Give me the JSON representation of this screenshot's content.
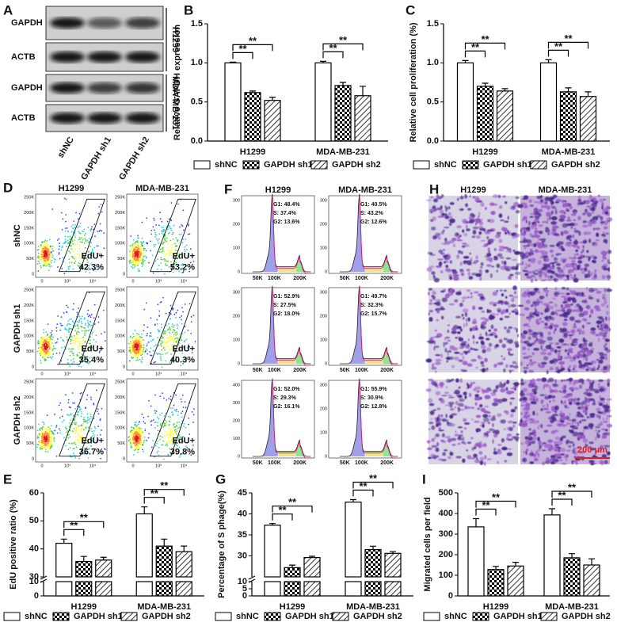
{
  "panel_letters": [
    "A",
    "B",
    "C",
    "D",
    "E",
    "F",
    "G",
    "H",
    "I"
  ],
  "blot": {
    "row_labels": [
      "GAPDH",
      "ACTB",
      "GAPDH",
      "ACTB"
    ],
    "cell_lines": [
      "H1299",
      "MDA-MB-231"
    ],
    "lanes": [
      "shNC",
      "GAPDH sh1",
      "GAPDH sh2"
    ]
  },
  "flow": {
    "columns": [
      "H1299",
      "MDA-MB-231"
    ],
    "rows": [
      "shNC",
      "GAPDH sh1",
      "GAPDH sh2"
    ],
    "gate_label": "EdU+",
    "percentages": [
      [
        "42.3%",
        "53.2%"
      ],
      [
        "35.4%",
        "40.3%"
      ],
      [
        "36.7%",
        "39.8%"
      ]
    ],
    "y_ticks": [
      "250K",
      "200K",
      "150K",
      "100K",
      "50K",
      "0"
    ],
    "x_ticks": [
      "0",
      "10³",
      "10⁴"
    ]
  },
  "cycle": {
    "columns": [
      "H1299",
      "MDA-MB-231"
    ],
    "phases": [
      [
        [
          "G1: 48.4%",
          "S: 37.4%",
          "G2: 13.6%"
        ],
        [
          "G1: 40.5%",
          "S: 43.2%",
          "G2: 12.6%"
        ]
      ],
      [
        [
          "G1: 52.9%",
          "S: 27.5%",
          "G2: 18.0%"
        ],
        [
          "G1: 49.7%",
          "S: 32.3%",
          "G2: 15.7%"
        ]
      ],
      [
        [
          "G1: 52.0%",
          "S: 29.3%",
          "G2: 16.1%"
        ],
        [
          "G1: 55.9%",
          "S: 30.9%",
          "G2: 12.8%"
        ]
      ]
    ],
    "y_ticks": [
      [
        [
          "300",
          "200",
          "100",
          "0"
        ],
        [
          "300",
          "200",
          "100",
          "0"
        ]
      ],
      [
        [
          "300",
          "200",
          "100",
          "0"
        ],
        [
          "300",
          "200",
          "100",
          "0"
        ]
      ],
      [
        [
          "400",
          "300",
          "200",
          "100",
          "0"
        ],
        [
          "300",
          "200",
          "100",
          "0"
        ]
      ]
    ],
    "x_ticks": [
      "50K",
      "100K",
      "200K"
    ]
  },
  "migration": {
    "columns": [
      "H1299",
      "MDA-MB-231"
    ],
    "scale_bar": "200 μm"
  },
  "chart_data": [
    {
      "type": "bar",
      "ylabel": "Relative GAPDH expression",
      "categories": [
        "H1299",
        "MDA-MB-231"
      ],
      "series": [
        {
          "name": "shNC",
          "color": "#ffffff",
          "pattern": "none",
          "values": [
            1.0,
            1.0
          ],
          "errors": [
            0.01,
            0.02
          ]
        },
        {
          "name": "GAPDH sh1",
          "color": "#ffffff",
          "pattern": "checker",
          "values": [
            0.62,
            0.71
          ],
          "errors": [
            0.02,
            0.04
          ]
        },
        {
          "name": "GAPDH sh2",
          "color": "#ffffff",
          "pattern": "hatch",
          "values": [
            0.52,
            0.58
          ],
          "errors": [
            0.04,
            0.12
          ]
        }
      ],
      "ylim": [
        0,
        1.5
      ],
      "yticks": [
        {
          "value": 0,
          "label": "0.0"
        },
        {
          "value": 0.5,
          "label": "0.5"
        },
        {
          "value": 1,
          "label": "1.0"
        },
        {
          "value": 1.5,
          "label": "1.5"
        }
      ],
      "annotations": [
        "**",
        "**",
        "**",
        "**"
      ]
    },
    {
      "type": "bar",
      "ylabel": "Relative cell proliferation (%)",
      "categories": [
        "H1299",
        "MDA-MB-231"
      ],
      "series": [
        {
          "name": "shNC",
          "color": "#ffffff",
          "pattern": "none",
          "values": [
            1.0,
            1.0
          ],
          "errors": [
            0.03,
            0.04
          ]
        },
        {
          "name": "GAPDH sh1",
          "color": "#ffffff",
          "pattern": "checker",
          "values": [
            0.7,
            0.63
          ],
          "errors": [
            0.04,
            0.05
          ]
        },
        {
          "name": "GAPDH sh2",
          "color": "#ffffff",
          "pattern": "hatch",
          "values": [
            0.64,
            0.57
          ],
          "errors": [
            0.03,
            0.06
          ]
        }
      ],
      "ylim": [
        0,
        1.5
      ],
      "yticks": [
        {
          "value": 0,
          "label": "0.0"
        },
        {
          "value": 0.5,
          "label": "0.5"
        },
        {
          "value": 1,
          "label": "1.0"
        },
        {
          "value": 1.5,
          "label": "1.5"
        }
      ],
      "annotations": [
        "**",
        "**",
        "**",
        "**"
      ]
    },
    {
      "type": "bar",
      "ylabel": "EdU positive ratio (%)",
      "categories": [
        "H1299",
        "MDA-MB-231"
      ],
      "series": [
        {
          "name": "shNC",
          "color": "#ffffff",
          "pattern": "none",
          "values": [
            42,
            52.5
          ],
          "errors": [
            1.5,
            2.5
          ]
        },
        {
          "name": "GAPDH sh1",
          "color": "#ffffff",
          "pattern": "checker",
          "values": [
            35.5,
            41
          ],
          "errors": [
            1.8,
            2.5
          ]
        },
        {
          "name": "GAPDH sh2",
          "color": "#ffffff",
          "pattern": "hatch",
          "values": [
            36,
            39
          ],
          "errors": [
            1,
            2
          ]
        }
      ],
      "ylim": [
        0,
        60
      ],
      "ybreak": [
        10,
        30
      ],
      "yticks": [
        0,
        10,
        30,
        40,
        50,
        60
      ],
      "annotations": [
        "**",
        "**",
        "**",
        "**"
      ]
    },
    {
      "type": "bar",
      "ylabel": "Percentage of S phage(%)",
      "categories": [
        "H1299",
        "MDA-MB-231"
      ],
      "series": [
        {
          "name": "shNC",
          "color": "#ffffff",
          "pattern": "none",
          "values": [
            37.3,
            42.8
          ],
          "errors": [
            0.4,
            0.6
          ]
        },
        {
          "name": "GAPDH sh1",
          "color": "#ffffff",
          "pattern": "checker",
          "values": [
            27.2,
            31.5
          ],
          "errors": [
            0.6,
            0.8
          ]
        },
        {
          "name": "GAPDH sh2",
          "color": "#ffffff",
          "pattern": "hatch",
          "values": [
            29.6,
            30.6
          ],
          "errors": [
            0.3,
            0.4
          ]
        }
      ],
      "ylim": [
        0,
        45
      ],
      "ybreak": [
        10,
        25
      ],
      "yticks": [
        0,
        5,
        10,
        30,
        35,
        40,
        45
      ],
      "annotations": [
        "**",
        "**",
        "**",
        "**"
      ]
    },
    {
      "type": "bar",
      "ylabel": "Migrated cells per field",
      "categories": [
        "H1299",
        "MDA-MB-231"
      ],
      "series": [
        {
          "name": "shNC",
          "color": "#ffffff",
          "pattern": "none",
          "values": [
            335,
            393
          ],
          "errors": [
            40,
            30
          ]
        },
        {
          "name": "GAPDH sh1",
          "color": "#ffffff",
          "pattern": "checker",
          "values": [
            128,
            185
          ],
          "errors": [
            15,
            20
          ]
        },
        {
          "name": "GAPDH sh2",
          "color": "#ffffff",
          "pattern": "hatch",
          "values": [
            145,
            150
          ],
          "errors": [
            18,
            30
          ]
        }
      ],
      "ylim": [
        0,
        500
      ],
      "yticks": [
        0,
        100,
        200,
        300,
        400,
        500
      ],
      "annotations": [
        "**",
        "**",
        "**",
        "**"
      ]
    }
  ]
}
